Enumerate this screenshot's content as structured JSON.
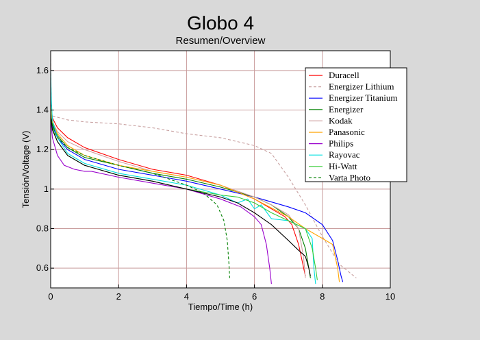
{
  "chart_data": {
    "type": "line",
    "title": "Globo 4",
    "subtitle": "Resumen/Overview",
    "xlabel": "Tiempo/Time (h)",
    "ylabel": "Tensión/Voltage (V)",
    "xlim": [
      0,
      10
    ],
    "ylim": [
      0.5,
      1.7
    ],
    "xticks": [
      "0",
      "2",
      "4",
      "6",
      "8",
      "10"
    ],
    "yticks": [
      "0.6",
      "0.8",
      "1",
      "1.2",
      "1.4",
      "1.6"
    ],
    "xtick_values": [
      0,
      2,
      4,
      6,
      8,
      10
    ],
    "ytick_values": [
      0.6,
      0.8,
      1.0,
      1.2,
      1.4,
      1.6
    ],
    "grid": true,
    "grid_color": "#c89a9a",
    "legend_position": "top-right",
    "series": [
      {
        "name": "Duracell",
        "color": "#ff0000",
        "dash": false,
        "x": [
          0,
          0.05,
          0.2,
          0.5,
          1,
          2,
          3,
          4,
          5,
          6,
          6.5,
          6.9,
          7.1,
          7.3,
          7.45,
          7.5
        ],
        "y": [
          1.44,
          1.36,
          1.31,
          1.26,
          1.21,
          1.15,
          1.1,
          1.07,
          1.02,
          0.95,
          0.9,
          0.86,
          0.82,
          0.72,
          0.6,
          0.56
        ]
      },
      {
        "name": "Energizer Lithium",
        "color": "#c8a0a0",
        "dash": true,
        "x": [
          0,
          0.02,
          0.05,
          0.5,
          1,
          2,
          3,
          4,
          5,
          5.5,
          6,
          6.5,
          7,
          7.5,
          8,
          8.5,
          9
        ],
        "y": [
          1.66,
          1.4,
          1.37,
          1.35,
          1.34,
          1.33,
          1.31,
          1.28,
          1.26,
          1.24,
          1.22,
          1.18,
          1.06,
          0.92,
          0.76,
          0.62,
          0.55
        ]
      },
      {
        "name": "Energizer Titanium",
        "color": "#0000ff",
        "dash": false,
        "x": [
          0,
          0.05,
          0.2,
          0.5,
          1,
          2,
          3,
          4,
          5,
          6,
          7,
          7.5,
          8,
          8.3,
          8.45,
          8.55,
          8.6
        ],
        "y": [
          1.4,
          1.32,
          1.26,
          1.2,
          1.15,
          1.1,
          1.07,
          1.04,
          1.0,
          0.96,
          0.91,
          0.88,
          0.82,
          0.74,
          0.64,
          0.56,
          0.53
        ]
      },
      {
        "name": "Energizer",
        "color": "#008000",
        "dash": false,
        "x": [
          0,
          0.05,
          0.2,
          0.5,
          1,
          2,
          3,
          4,
          5,
          6,
          6.5,
          7,
          7.3,
          7.5,
          7.6,
          7.65
        ],
        "y": [
          1.4,
          1.33,
          1.27,
          1.21,
          1.16,
          1.12,
          1.08,
          1.05,
          1.01,
          0.96,
          0.92,
          0.86,
          0.8,
          0.7,
          0.6,
          0.55
        ]
      },
      {
        "name": "Kodak",
        "color": "#d0a0a0",
        "dash": false,
        "x": [
          0,
          0.05,
          0.2,
          0.5,
          1,
          2,
          3,
          4,
          5,
          6,
          6.5,
          7,
          7.3,
          7.45,
          7.5
        ],
        "y": [
          1.4,
          1.34,
          1.29,
          1.24,
          1.2,
          1.14,
          1.09,
          1.06,
          1.02,
          0.96,
          0.92,
          0.87,
          0.8,
          0.65,
          0.55
        ]
      },
      {
        "name": "Panasonic",
        "color": "#ffa500",
        "dash": false,
        "x": [
          0,
          0.05,
          0.2,
          0.5,
          1,
          2,
          3,
          4,
          5,
          6,
          7,
          7.5,
          8,
          8.3,
          8.45,
          8.5
        ],
        "y": [
          1.42,
          1.34,
          1.28,
          1.22,
          1.17,
          1.12,
          1.09,
          1.06,
          1.02,
          0.95,
          0.86,
          0.8,
          0.75,
          0.72,
          0.6,
          0.53
        ]
      },
      {
        "name": "Philips",
        "color": "#9900cc",
        "dash": false,
        "x": [
          0,
          0.05,
          0.2,
          0.4,
          0.7,
          1,
          1.2,
          2,
          3,
          4,
          5,
          5.6,
          6,
          6.2,
          6.35,
          6.45,
          6.5
        ],
        "y": [
          1.36,
          1.26,
          1.17,
          1.12,
          1.1,
          1.09,
          1.09,
          1.06,
          1.03,
          1.0,
          0.95,
          0.91,
          0.86,
          0.82,
          0.72,
          0.6,
          0.52
        ]
      },
      {
        "name": "Rayovac",
        "color": "#00e0e0",
        "dash": false,
        "x": [
          0,
          0.02,
          0.05,
          0.2,
          0.5,
          1,
          2,
          3,
          4,
          5,
          5.5,
          5.8,
          6,
          6.2,
          6.5,
          7,
          7.5,
          7.7,
          7.75,
          7.8
        ],
        "y": [
          1.6,
          1.45,
          1.35,
          1.26,
          1.18,
          1.13,
          1.08,
          1.05,
          1.02,
          0.97,
          0.93,
          0.95,
          0.9,
          0.92,
          0.85,
          0.84,
          0.8,
          0.75,
          0.6,
          0.52
        ]
      },
      {
        "name": "Hi-Watt",
        "color": "#33cc33",
        "dash": false,
        "x": [
          0,
          0.05,
          0.2,
          0.5,
          1,
          2,
          3,
          4,
          5,
          5.5,
          6,
          6.5,
          7,
          7.5,
          7.7,
          7.8,
          7.85
        ],
        "y": [
          1.38,
          1.31,
          1.24,
          1.17,
          1.12,
          1.07,
          1.04,
          1.0,
          0.97,
          0.96,
          0.93,
          0.88,
          0.84,
          0.8,
          0.7,
          0.6,
          0.54
        ]
      },
      {
        "name": "Varta Photo",
        "color": "#008000",
        "dash": true,
        "x": [
          0,
          0.05,
          0.2,
          0.5,
          1,
          2,
          3,
          4,
          4.5,
          4.9,
          5.1,
          5.2,
          5.25,
          5.27
        ],
        "y": [
          1.38,
          1.32,
          1.26,
          1.21,
          1.17,
          1.12,
          1.08,
          1.02,
          0.98,
          0.92,
          0.84,
          0.74,
          0.62,
          0.55
        ]
      },
      {
        "name": "",
        "color": "#000000",
        "dash": false,
        "x": [
          0,
          0.05,
          0.2,
          0.5,
          1,
          2,
          3,
          4,
          5,
          5.5,
          6,
          6.5,
          7,
          7.3,
          7.5,
          7.6,
          7.65
        ],
        "y": [
          1.37,
          1.3,
          1.24,
          1.17,
          1.12,
          1.07,
          1.04,
          1.0,
          0.96,
          0.93,
          0.88,
          0.82,
          0.74,
          0.69,
          0.66,
          0.6,
          0.56
        ]
      }
    ]
  }
}
